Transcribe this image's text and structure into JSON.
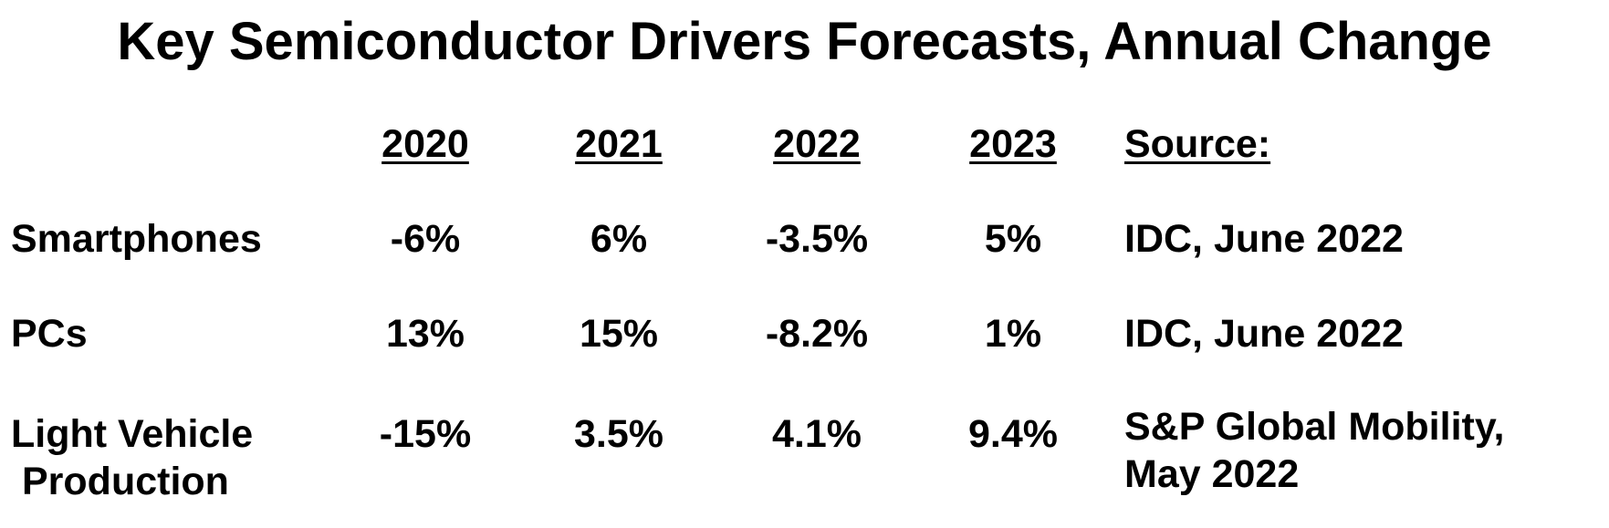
{
  "title": "Key Semiconductor Drivers Forecasts, Annual Change",
  "table": {
    "years": [
      "2020",
      "2021",
      "2022",
      "2023"
    ],
    "source_header": "Source:",
    "rows": [
      {
        "label": "Smartphones",
        "values": [
          "-6%",
          "6%",
          "-3.5%",
          "5%"
        ],
        "source": "IDC, June 2022"
      },
      {
        "label": "PCs",
        "values": [
          "13%",
          "15%",
          "-8.2%",
          "1%"
        ],
        "source": "IDC, June 2022"
      },
      {
        "label_line1": "Light Vehicle",
        "label_line2": "Production",
        "values": [
          "-15%",
          "3.5%",
          "4.1%",
          "9.4%"
        ],
        "source_line1": "S&P Global Mobility,",
        "source_line2": "May 2022"
      }
    ]
  }
}
